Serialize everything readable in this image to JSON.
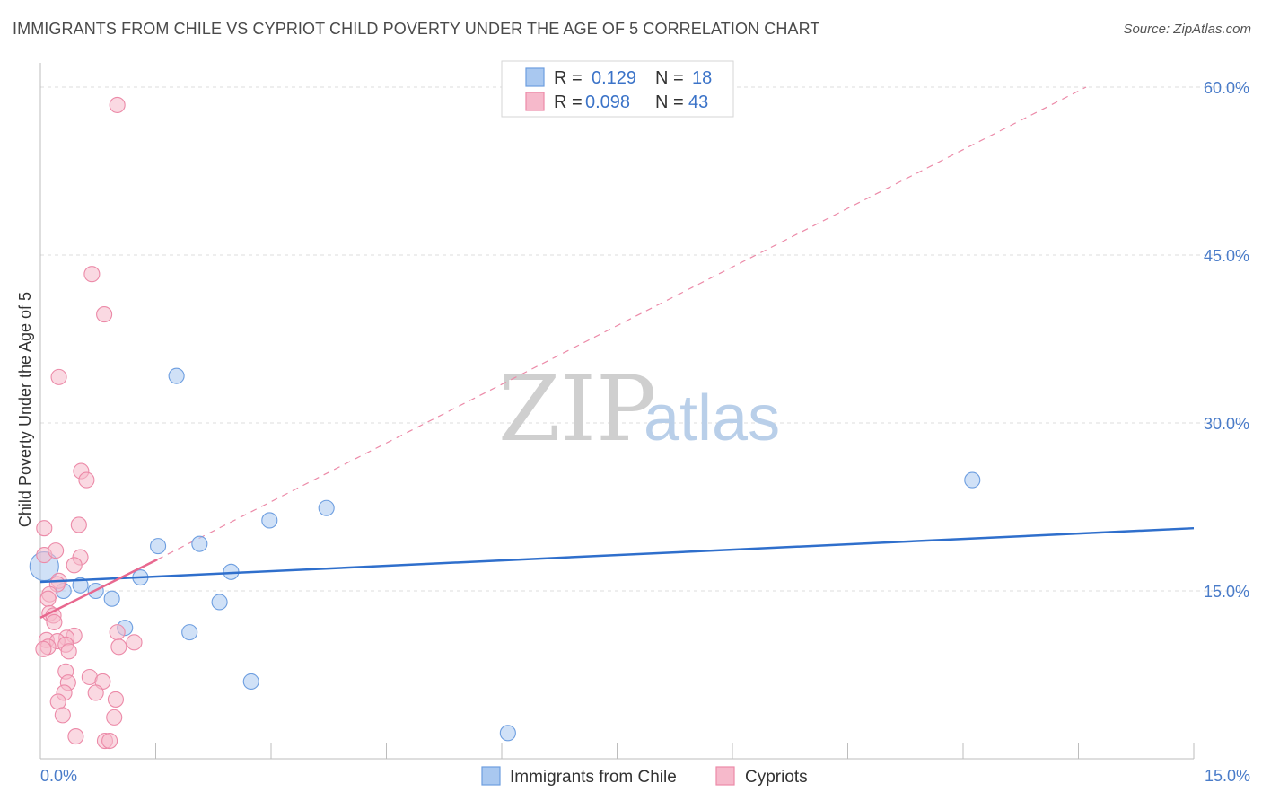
{
  "header": {
    "title": "IMMIGRANTS FROM CHILE VS CYPRIOT CHILD POVERTY UNDER THE AGE OF 5 CORRELATION CHART",
    "source": "Source: ZipAtlas.com"
  },
  "watermark": {
    "zip": "ZIP",
    "atlas": "atlas"
  },
  "legend": {
    "rows": [
      {
        "r_label": "R =",
        "r_value": "0.129",
        "n_label": "N =",
        "n_value": "18",
        "color": "#a9c8f0"
      },
      {
        "r_label": "R =",
        "r_value": "0.098",
        "n_label": "N =",
        "n_value": "43",
        "color": "#f6b9cb"
      }
    ]
  },
  "bottom_legend": {
    "items": [
      {
        "label": "Immigrants from Chile",
        "color": "#a9c8f0"
      },
      {
        "label": "Cypriots",
        "color": "#f6b9cb"
      }
    ]
  },
  "chart_data": {
    "type": "scatter",
    "xlabel": "",
    "ylabel": "Child Poverty Under the Age of 5",
    "xlim": [
      0,
      15
    ],
    "ylim": [
      0,
      60
    ],
    "x_tick_labels": [
      "0.0%",
      "15.0%"
    ],
    "y_ticks": [
      15,
      30,
      45,
      60
    ],
    "y_tick_labels": [
      "15.0%",
      "30.0%",
      "45.0%",
      "60.0%"
    ],
    "grid": "horizontal dashed",
    "series": [
      {
        "name": "Immigrants from Chile",
        "color": "#a9c8f0",
        "stroke": "#6d9ee0",
        "points": [
          [
            0.05,
            17.2
          ],
          [
            0.3,
            15.0
          ],
          [
            0.52,
            15.5
          ],
          [
            0.72,
            15.0
          ],
          [
            0.93,
            14.3
          ],
          [
            1.1,
            11.7
          ],
          [
            1.3,
            16.2
          ],
          [
            1.53,
            19.0
          ],
          [
            1.77,
            34.2
          ],
          [
            1.94,
            11.3
          ],
          [
            2.07,
            19.2
          ],
          [
            2.33,
            14.0
          ],
          [
            2.48,
            16.7
          ],
          [
            2.74,
            6.9
          ],
          [
            2.98,
            21.3
          ],
          [
            3.72,
            22.4
          ],
          [
            6.08,
            2.3
          ],
          [
            12.12,
            24.9
          ]
        ],
        "trend": {
          "x": [
            0.0,
            15.0
          ],
          "y": [
            15.8,
            20.6
          ]
        }
      },
      {
        "name": "Cypriots",
        "color": "#f6b9cb",
        "stroke": "#ec8aa8",
        "points": [
          [
            1.0,
            58.4
          ],
          [
            0.67,
            43.3
          ],
          [
            0.83,
            39.7
          ],
          [
            0.24,
            34.1
          ],
          [
            0.53,
            25.7
          ],
          [
            0.6,
            24.9
          ],
          [
            0.05,
            20.6
          ],
          [
            0.5,
            20.9
          ],
          [
            0.05,
            18.2
          ],
          [
            0.52,
            18.0
          ],
          [
            0.44,
            17.3
          ],
          [
            0.24,
            15.9
          ],
          [
            0.22,
            15.6
          ],
          [
            0.12,
            14.7
          ],
          [
            0.1,
            14.3
          ],
          [
            0.12,
            13.0
          ],
          [
            0.17,
            12.8
          ],
          [
            0.18,
            12.2
          ],
          [
            0.44,
            11.0
          ],
          [
            0.34,
            10.8
          ],
          [
            0.08,
            10.6
          ],
          [
            0.22,
            10.5
          ],
          [
            0.33,
            10.2
          ],
          [
            0.1,
            10.0
          ],
          [
            0.04,
            9.8
          ],
          [
            0.37,
            9.6
          ],
          [
            1.0,
            11.3
          ],
          [
            1.22,
            10.4
          ],
          [
            1.02,
            10.0
          ],
          [
            0.33,
            7.8
          ],
          [
            0.64,
            7.3
          ],
          [
            0.81,
            6.9
          ],
          [
            0.36,
            6.8
          ],
          [
            0.31,
            5.9
          ],
          [
            0.72,
            5.9
          ],
          [
            0.98,
            5.3
          ],
          [
            0.23,
            5.1
          ],
          [
            0.29,
            3.9
          ],
          [
            0.96,
            3.7
          ],
          [
            0.46,
            2.0
          ],
          [
            0.84,
            1.6
          ],
          [
            0.9,
            1.6
          ],
          [
            0.2,
            18.6
          ]
        ],
        "trend": {
          "x": [
            0.0,
            1.52
          ],
          "y": [
            12.6,
            17.8
          ]
        },
        "trend_extension": {
          "x": [
            1.52,
            13.6
          ],
          "y": [
            17.8,
            60.0
          ]
        }
      }
    ]
  }
}
